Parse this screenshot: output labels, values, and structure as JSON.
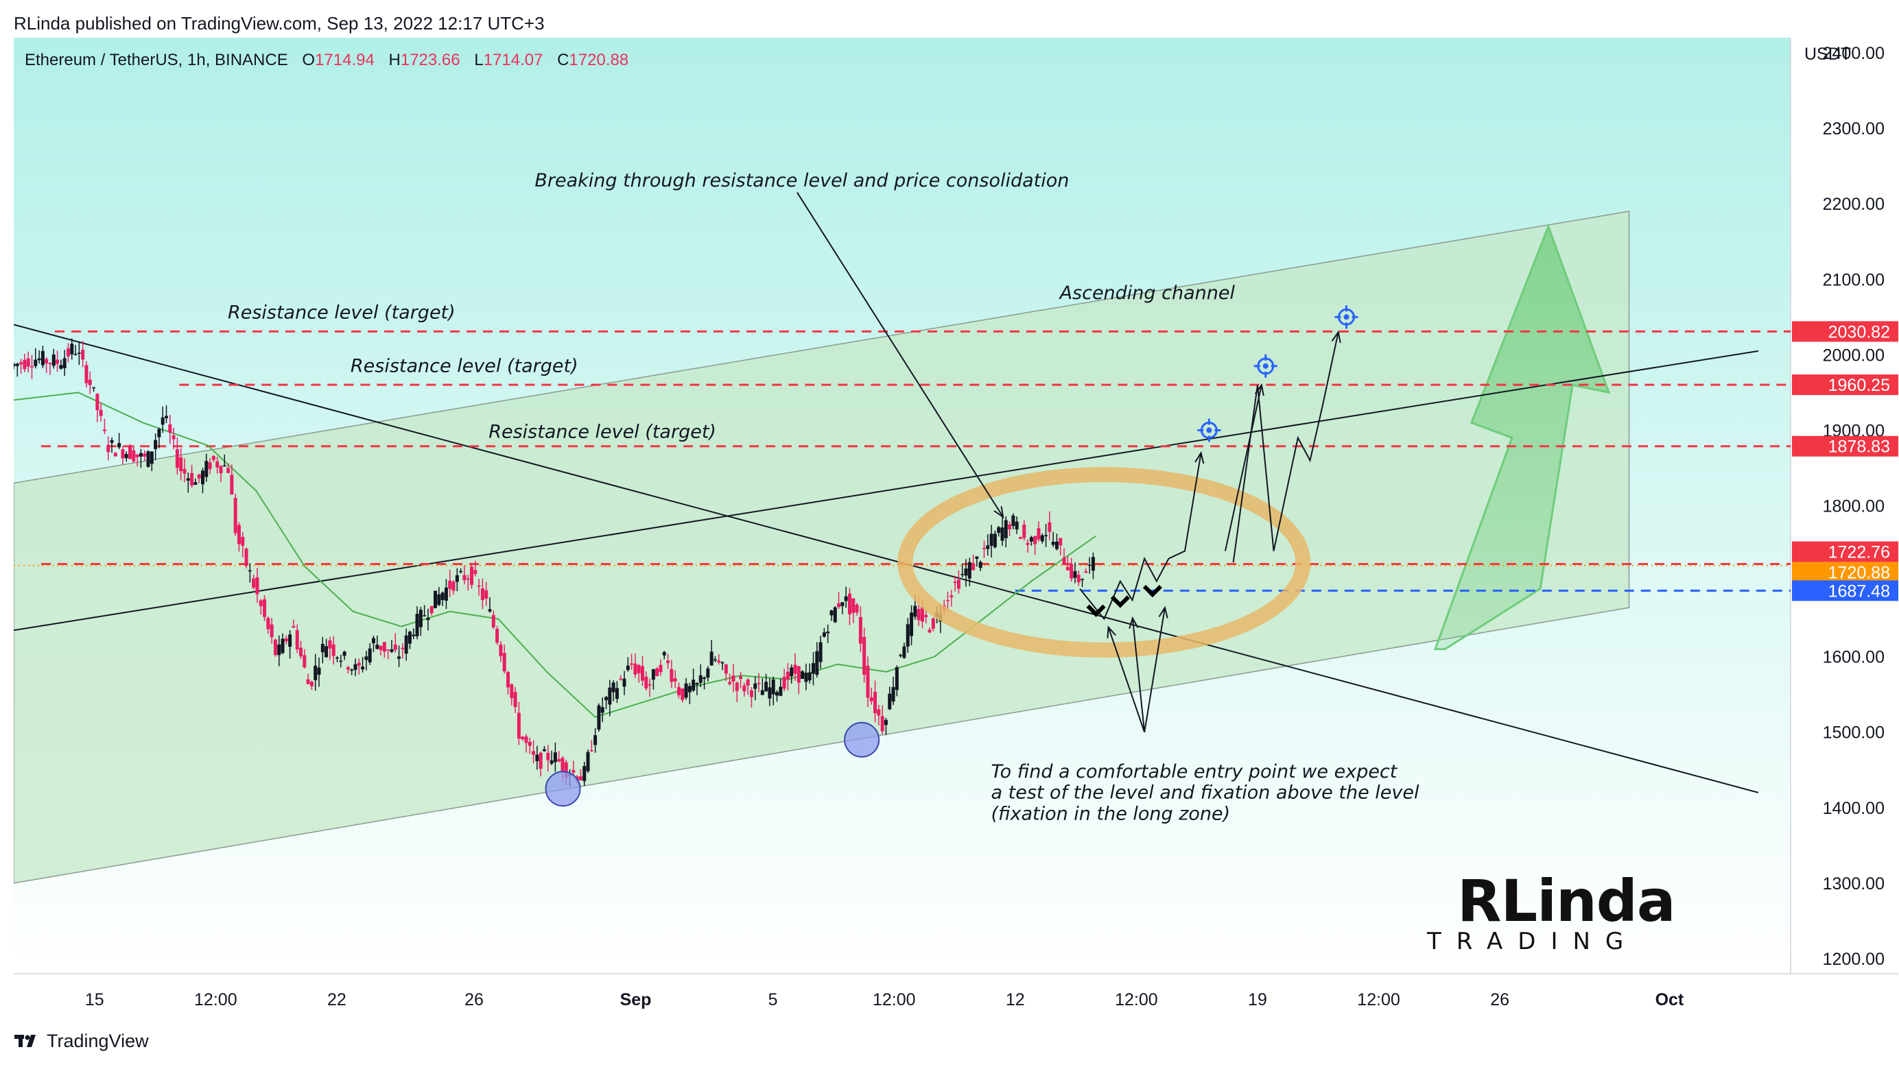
{
  "header": {
    "publisher_line": "RLinda published on TradingView.com, Sep 13, 2022 12:17 UTC+3"
  },
  "legend": {
    "symbol": "Ethereum / TetherUS, 1h, BINANCE",
    "open_label": "O",
    "open": "1714.94",
    "high_label": "H",
    "high": "1723.66",
    "low_label": "L",
    "low": "1714.07",
    "close_label": "C",
    "close": "1720.88"
  },
  "footer": {
    "brand": "TradingView"
  },
  "watermark": {
    "name": "RLinda",
    "sub": "TRADING"
  },
  "colors": {
    "background_top": "#b2f0e8",
    "background_bottom": "#ffffff",
    "channel_fill": "#c6e8c8",
    "resistance": "#f23645",
    "support_blue": "#2962ff",
    "current_price": "#ff9800",
    "candle_up": "#131722",
    "candle_down": "#e91e63",
    "ma": "#4caf50",
    "ellipse": "#e8b96a",
    "big_arrow": "#6fcc7c"
  },
  "chart_data": {
    "type": "candlestick",
    "ylabel": "USDT",
    "ylim": [
      1180,
      2420
    ],
    "y_ticks": [
      1200,
      1300,
      1400,
      1500,
      1600,
      1700,
      1800,
      1900,
      2000,
      2100,
      2200,
      2300,
      2400
    ],
    "y_tick_labels": [
      "1200.00",
      "1300.00",
      "1400.00",
      "1500.00",
      "1600.00",
      "",
      "1800.00",
      "1900.00",
      "2000.00",
      "2100.00",
      "2200.00",
      "2300.00",
      "2400.00"
    ],
    "x_ticks": [
      {
        "label": "15",
        "t": 1.0
      },
      {
        "label": "12:00",
        "t": 2.5
      },
      {
        "label": "22",
        "t": 4.0
      },
      {
        "label": "26",
        "t": 5.7
      },
      {
        "label": "Sep",
        "t": 7.7
      },
      {
        "label": "5",
        "t": 9.4
      },
      {
        "label": "12:00",
        "t": 10.9
      },
      {
        "label": "12",
        "t": 12.4
      },
      {
        "label": "12:00",
        "t": 13.9
      },
      {
        "label": "19",
        "t": 15.4
      },
      {
        "label": "12:00",
        "t": 16.9
      },
      {
        "label": "26",
        "t": 18.4
      },
      {
        "label": "Oct",
        "t": 20.5
      }
    ],
    "x_range": [
      0,
      22.0
    ],
    "price_path": [
      [
        0.0,
        1985
      ],
      [
        0.3,
        1995
      ],
      [
        0.6,
        1990
      ],
      [
        0.8,
        2010
      ],
      [
        1.0,
        1960
      ],
      [
        1.2,
        1880
      ],
      [
        1.5,
        1870
      ],
      [
        1.7,
        1860
      ],
      [
        1.9,
        1920
      ],
      [
        2.1,
        1850
      ],
      [
        2.3,
        1830
      ],
      [
        2.5,
        1860
      ],
      [
        2.7,
        1850
      ],
      [
        2.8,
        1760
      ],
      [
        3.0,
        1700
      ],
      [
        3.3,
        1600
      ],
      [
        3.5,
        1640
      ],
      [
        3.7,
        1560
      ],
      [
        3.9,
        1620
      ],
      [
        4.1,
        1600
      ],
      [
        4.3,
        1580
      ],
      [
        4.5,
        1620
      ],
      [
        4.8,
        1600
      ],
      [
        5.0,
        1640
      ],
      [
        5.3,
        1680
      ],
      [
        5.5,
        1700
      ],
      [
        5.7,
        1710
      ],
      [
        5.9,
        1670
      ],
      [
        6.1,
        1600
      ],
      [
        6.3,
        1500
      ],
      [
        6.5,
        1460
      ],
      [
        6.7,
        1470
      ],
      [
        6.9,
        1450
      ],
      [
        7.1,
        1440
      ],
      [
        7.3,
        1530
      ],
      [
        7.5,
        1560
      ],
      [
        7.7,
        1590
      ],
      [
        7.9,
        1560
      ],
      [
        8.1,
        1600
      ],
      [
        8.3,
        1550
      ],
      [
        8.5,
        1560
      ],
      [
        8.7,
        1600
      ],
      [
        8.9,
        1570
      ],
      [
        9.1,
        1560
      ],
      [
        9.3,
        1555
      ],
      [
        9.5,
        1560
      ],
      [
        9.7,
        1580
      ],
      [
        9.9,
        1570
      ],
      [
        10.1,
        1640
      ],
      [
        10.3,
        1680
      ],
      [
        10.5,
        1650
      ],
      [
        10.6,
        1560
      ],
      [
        10.8,
        1510
      ],
      [
        10.9,
        1550
      ],
      [
        11.0,
        1600
      ],
      [
        11.2,
        1660
      ],
      [
        11.4,
        1640
      ],
      [
        11.6,
        1680
      ],
      [
        11.8,
        1710
      ],
      [
        12.0,
        1730
      ],
      [
        12.2,
        1760
      ],
      [
        12.4,
        1780
      ],
      [
        12.6,
        1750
      ],
      [
        12.8,
        1770
      ],
      [
        13.0,
        1740
      ],
      [
        13.2,
        1700
      ],
      [
        13.4,
        1721
      ]
    ],
    "moving_average": [
      [
        0.0,
        1940
      ],
      [
        0.8,
        1950
      ],
      [
        1.6,
        1910
      ],
      [
        2.4,
        1880
      ],
      [
        3.0,
        1820
      ],
      [
        3.6,
        1720
      ],
      [
        4.2,
        1660
      ],
      [
        4.8,
        1640
      ],
      [
        5.4,
        1660
      ],
      [
        6.0,
        1650
      ],
      [
        6.6,
        1580
      ],
      [
        7.2,
        1520
      ],
      [
        7.8,
        1540
      ],
      [
        8.4,
        1560
      ],
      [
        9.0,
        1575
      ],
      [
        9.6,
        1570
      ],
      [
        10.2,
        1590
      ],
      [
        10.8,
        1580
      ],
      [
        11.4,
        1600
      ],
      [
        12.0,
        1650
      ],
      [
        12.6,
        1700
      ],
      [
        13.0,
        1730
      ],
      [
        13.4,
        1760
      ]
    ],
    "levels": [
      {
        "label": "2030.82",
        "value": 2030.82,
        "style": "resistance"
      },
      {
        "label": "1960.25",
        "value": 1960.25,
        "style": "resistance"
      },
      {
        "label": "1878.83",
        "value": 1878.83,
        "style": "resistance"
      },
      {
        "label": "1722.76",
        "value": 1722.76,
        "style": "resistance"
      },
      {
        "label": "1720.88",
        "value": 1720.88,
        "style": "current"
      },
      {
        "label": "1687.48",
        "value": 1687.48,
        "style": "support"
      }
    ],
    "channel": {
      "upper": [
        [
          0.0,
          1830
        ],
        [
          20.0,
          2190
        ]
      ],
      "lower": [
        [
          0.0,
          1300
        ],
        [
          20.0,
          1665
        ]
      ]
    },
    "trendlines": [
      {
        "name": "descending",
        "from": [
          0.0,
          2040
        ],
        "to": [
          21.6,
          1420
        ]
      },
      {
        "name": "ascending",
        "from": [
          0.0,
          1635
        ],
        "to": [
          21.6,
          2005
        ]
      }
    ],
    "projection_path": [
      [
        13.2,
        1690
      ],
      [
        13.5,
        1650
      ],
      [
        13.7,
        1700
      ],
      [
        13.85,
        1675
      ],
      [
        14.0,
        1730
      ],
      [
        14.15,
        1700
      ],
      [
        14.3,
        1730
      ],
      [
        14.5,
        1740
      ],
      [
        14.7,
        1870
      ],
      [
        15.1,
        1725
      ],
      [
        15.4,
        1960
      ],
      [
        15.6,
        1740
      ],
      [
        15.9,
        1890
      ],
      [
        16.05,
        1860
      ],
      [
        16.2,
        1930
      ],
      [
        16.4,
        2030
      ]
    ],
    "target_markers": [
      [
        14.8,
        1900
      ],
      [
        15.5,
        1985
      ],
      [
        16.5,
        2050
      ]
    ],
    "entry_markers": [
      [
        13.4,
        1680
      ],
      [
        13.7,
        1692
      ],
      [
        14.1,
        1706
      ]
    ],
    "swing_lows": [
      [
        6.8,
        1425
      ],
      [
        10.5,
        1490
      ]
    ],
    "annotations": [
      "Breaking through resistance level and price consolidation",
      "Ascending channel",
      "Resistance level (target)",
      "Resistance level (target)",
      "Resistance level (target)",
      "To find a comfortable entry point we expect",
      "a test of the level and fixation above the level",
      "(fixation in the long zone)"
    ]
  }
}
